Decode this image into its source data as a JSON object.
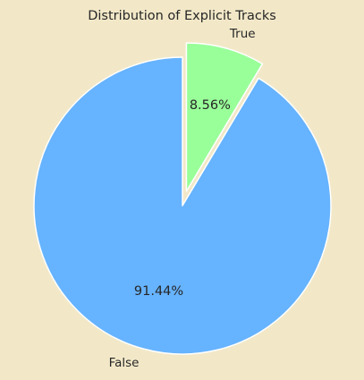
{
  "chart_data": {
    "type": "pie",
    "title": "Distribution of Explicit Tracks",
    "labels": [
      "False",
      "True"
    ],
    "values": [
      91.44,
      8.56
    ],
    "percent_labels": [
      "91.44%",
      "8.56%"
    ],
    "colors": [
      "#66B3FF",
      "#99FF99"
    ],
    "explode": [
      0,
      0.1
    ],
    "start_angle_deg": 90,
    "direction": "counterclockwise",
    "legend": "none",
    "background": "#F2E8C8"
  }
}
